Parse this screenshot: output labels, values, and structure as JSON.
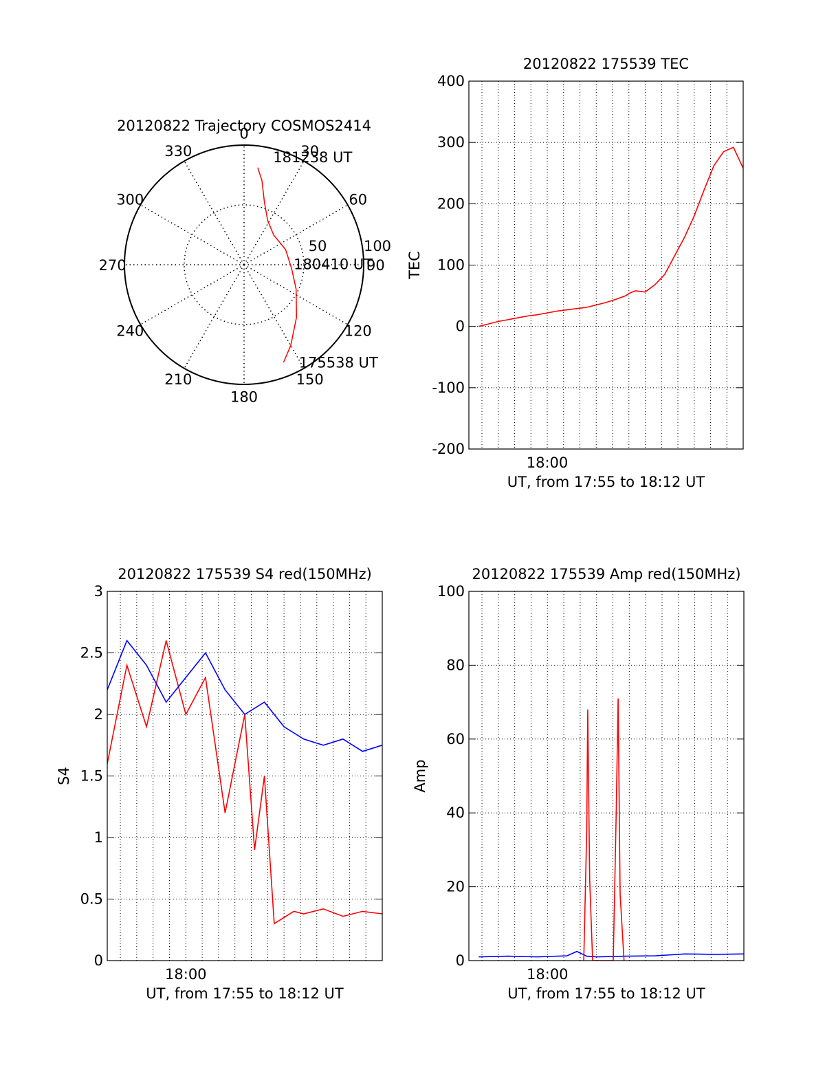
{
  "chart_data": [
    {
      "type": "polar",
      "title": "20120822 Trajectory COSMOS2414",
      "angle_ticks": [
        0,
        30,
        60,
        90,
        120,
        150,
        180,
        210,
        240,
        270,
        300,
        330
      ],
      "radial_ticks": [
        50,
        100
      ],
      "radial_max": 100,
      "series": [
        {
          "color": "#ff0000",
          "points": [
            {
              "az": 8,
              "r": 82
            },
            {
              "az": 12,
              "r": 72
            },
            {
              "az": 18,
              "r": 55
            },
            {
              "az": 28,
              "r": 42
            },
            {
              "az": 45,
              "r": 35
            },
            {
              "az": 70,
              "r": 37
            },
            {
              "az": 95,
              "r": 40
            },
            {
              "az": 115,
              "r": 48
            },
            {
              "az": 135,
              "r": 62
            },
            {
              "az": 150,
              "r": 78
            },
            {
              "az": 158,
              "r": 88
            }
          ]
        }
      ],
      "annotations": [
        {
          "text": "181238 UT",
          "az": 17,
          "r": 87
        },
        {
          "text": "180410 UT",
          "az": 98,
          "r": 43
        },
        {
          "text": "175538 UT",
          "az": 152,
          "r": 100
        }
      ]
    },
    {
      "type": "line",
      "title": "20120822 175539 TEC",
      "xlabel": "UT, from 17:55 to 18:12 UT",
      "ylabel": "TEC",
      "xlim": [
        17.92,
        18.2
      ],
      "ylim": [
        -200,
        400
      ],
      "yticks": [
        -200,
        -100,
        0,
        100,
        200,
        300,
        400
      ],
      "xticks": [
        {
          "x": 18.0,
          "label": "18:00"
        }
      ],
      "grid": true,
      "series": [
        {
          "color": "#ff0000",
          "x": [
            17.93,
            17.94,
            17.95,
            17.96,
            17.97,
            17.98,
            17.99,
            18.0,
            18.01,
            18.02,
            18.03,
            18.04,
            18.05,
            18.06,
            18.07,
            18.08,
            18.085,
            18.09,
            18.1,
            18.11,
            18.12,
            18.13,
            18.14,
            18.15,
            18.16,
            18.17,
            18.18,
            18.19,
            18.2
          ],
          "y": [
            0,
            4,
            8,
            11,
            14,
            17,
            19,
            22,
            25,
            27,
            29,
            31,
            35,
            39,
            44,
            50,
            55,
            58,
            56,
            68,
            85,
            115,
            145,
            180,
            222,
            262,
            285,
            292,
            258
          ]
        }
      ]
    },
    {
      "type": "line",
      "title": "20120822 175539 S4 red(150MHz)",
      "xlabel": "UT, from 17:55 to 18:12 UT",
      "ylabel": "S4",
      "xlim": [
        17.92,
        18.2
      ],
      "ylim": [
        0,
        3
      ],
      "yticks": [
        0,
        0.5,
        1,
        1.5,
        2,
        2.5,
        3
      ],
      "ytick_labels": [
        "0",
        "0.5",
        "1",
        "1.5",
        "2",
        "2.5",
        "3"
      ],
      "xticks": [
        {
          "x": 18.0,
          "label": "18:00"
        }
      ],
      "grid": true,
      "series": [
        {
          "color": "#ff0000",
          "x": [
            17.92,
            17.94,
            17.96,
            17.98,
            18.0,
            18.02,
            18.04,
            18.06,
            18.07,
            18.08,
            18.09,
            18.1,
            18.11,
            18.12,
            18.14,
            18.16,
            18.18,
            18.2
          ],
          "y": [
            1.6,
            2.4,
            1.9,
            2.6,
            2.0,
            2.3,
            1.2,
            2.0,
            0.9,
            1.5,
            0.3,
            0.35,
            0.4,
            0.38,
            0.42,
            0.36,
            0.4,
            0.38
          ]
        },
        {
          "color": "#0000ff",
          "x": [
            17.92,
            17.94,
            17.96,
            17.98,
            18.0,
            18.02,
            18.04,
            18.06,
            18.08,
            18.1,
            18.12,
            18.14,
            18.16,
            18.18,
            18.2
          ],
          "y": [
            2.2,
            2.6,
            2.4,
            2.1,
            2.3,
            2.5,
            2.2,
            2.0,
            2.1,
            1.9,
            1.8,
            1.75,
            1.8,
            1.7,
            1.75
          ]
        }
      ]
    },
    {
      "type": "line",
      "title": "20120822 175539 Amp red(150MHz)",
      "xlabel": "UT, from 17:55 to 18:12 UT",
      "ylabel": "Amp",
      "xlim": [
        17.92,
        18.2
      ],
      "ylim": [
        0,
        100
      ],
      "yticks": [
        0,
        20,
        40,
        60,
        80,
        100
      ],
      "xticks": [
        {
          "x": 18.0,
          "label": "18:00"
        }
      ],
      "grid": true,
      "series": [
        {
          "color": "#0000ff",
          "x": [
            17.93,
            17.96,
            17.99,
            18.02,
            18.03,
            18.04,
            18.05,
            18.08,
            18.11,
            18.14,
            18.17,
            18.2
          ],
          "y": [
            1.0,
            1.2,
            1.0,
            1.3,
            2.5,
            1.2,
            1.0,
            1.2,
            1.3,
            1.8,
            1.7,
            1.8
          ]
        },
        {
          "color": "#ff0000",
          "x": [
            18.037,
            18.04,
            18.041,
            18.043,
            18.046,
            18.067,
            18.07,
            18.072,
            18.074,
            18.078
          ],
          "y": [
            0,
            35,
            68,
            22,
            0,
            0,
            40,
            71,
            18,
            0
          ]
        }
      ]
    }
  ]
}
